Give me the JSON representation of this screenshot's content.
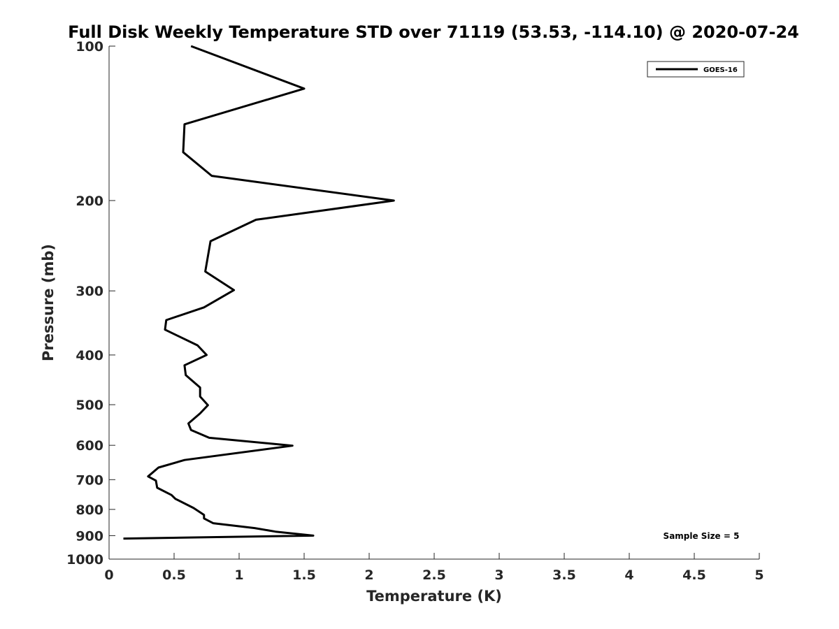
{
  "chart_data": {
    "type": "line",
    "title": "Full Disk Weekly Temperature STD over 71119 (53.53, -114.10) @ 2020-07-24",
    "xlabel": "Temperature (K)",
    "ylabel": "Pressure (mb)",
    "xlim": [
      0,
      5
    ],
    "ylim": [
      100,
      1000
    ],
    "y_scale": "log",
    "y_reversed": true,
    "x_ticks": [
      "0",
      "0.5",
      "1",
      "1.5",
      "2",
      "2.5",
      "3",
      "3.5",
      "4",
      "4.5",
      "5"
    ],
    "y_ticks": [
      "100",
      "200",
      "300",
      "400",
      "500",
      "600",
      "700",
      "800",
      "900",
      "1000"
    ],
    "grid": false,
    "legend_position": "top-right",
    "series": [
      {
        "name": "GOES-16",
        "color": "#000000",
        "points": [
          [
            0.63,
            100
          ],
          [
            1.5,
            121
          ],
          [
            0.58,
            142
          ],
          [
            0.57,
            161
          ],
          [
            0.79,
            179
          ],
          [
            2.19,
            200
          ],
          [
            1.13,
            218
          ],
          [
            0.78,
            240
          ],
          [
            0.74,
            275
          ],
          [
            0.96,
            299
          ],
          [
            0.73,
            323
          ],
          [
            0.44,
            342
          ],
          [
            0.43,
            357
          ],
          [
            0.68,
            383
          ],
          [
            0.75,
            400
          ],
          [
            0.58,
            419
          ],
          [
            0.59,
            438
          ],
          [
            0.7,
            463
          ],
          [
            0.7,
            482
          ],
          [
            0.76,
            501
          ],
          [
            0.7,
            520
          ],
          [
            0.61,
            544
          ],
          [
            0.63,
            560
          ],
          [
            0.77,
            580
          ],
          [
            1.41,
            601
          ],
          [
            0.58,
            641
          ],
          [
            0.38,
            663
          ],
          [
            0.3,
            690
          ],
          [
            0.36,
            703
          ],
          [
            0.37,
            726
          ],
          [
            0.48,
            750
          ],
          [
            0.51,
            763
          ],
          [
            0.65,
            795
          ],
          [
            0.73,
            820
          ],
          [
            0.73,
            833
          ],
          [
            0.8,
            851
          ],
          [
            1.12,
            870
          ],
          [
            1.28,
            884
          ],
          [
            1.57,
            900
          ],
          [
            0.11,
            912
          ]
        ]
      }
    ],
    "annotations": [
      "Sample Size = 5"
    ]
  }
}
